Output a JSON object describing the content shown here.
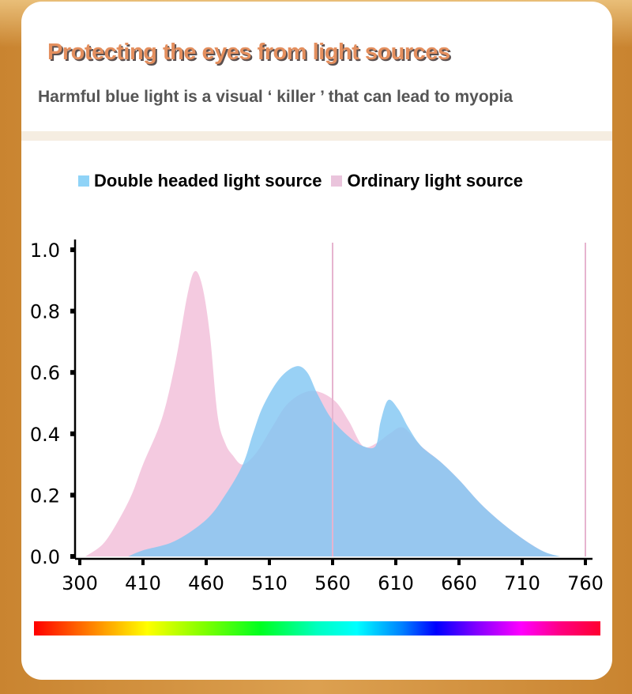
{
  "header": {
    "title": "Protecting the eyes from light sources",
    "subtitle": "Harmful blue light is a visual ‘ killer ’ that can lead to myopia"
  },
  "colors": {
    "double_headed": "#8fd3f7",
    "ordinary": "#f2c1da",
    "overlap": "#93c3ec",
    "title": "#e48f5e"
  },
  "chart_data": {
    "type": "area",
    "title": "",
    "xlabel": "",
    "ylabel": "",
    "legend_position": "top",
    "grid": false,
    "ylim": [
      0,
      1.0
    ],
    "x_ticks": [
      "300",
      "410",
      "460",
      "510",
      "560",
      "610",
      "660",
      "710",
      "760"
    ],
    "y_ticks": [
      "0.0",
      "0.2",
      "0.4",
      "0.6",
      "0.8",
      "1.0"
    ],
    "reference_lines_x": [
      560,
      760
    ],
    "series": [
      {
        "name": "Ordinary light source",
        "points": [
          [
            310,
            0
          ],
          [
            340,
            0.04
          ],
          [
            365,
            0.11
          ],
          [
            390,
            0.2
          ],
          [
            410,
            0.3
          ],
          [
            425,
            0.45
          ],
          [
            436,
            0.64
          ],
          [
            445,
            0.85
          ],
          [
            451,
            0.93
          ],
          [
            457,
            0.88
          ],
          [
            463,
            0.72
          ],
          [
            469,
            0.46
          ],
          [
            475,
            0.37
          ],
          [
            481,
            0.33
          ],
          [
            489,
            0.3
          ],
          [
            500,
            0.34
          ],
          [
            512,
            0.42
          ],
          [
            525,
            0.5
          ],
          [
            543,
            0.54
          ],
          [
            561,
            0.51
          ],
          [
            573,
            0.44
          ],
          [
            584,
            0.36
          ],
          [
            595,
            0.37
          ],
          [
            605,
            0.4
          ],
          [
            616,
            0.42
          ],
          [
            630,
            0.36
          ],
          [
            645,
            0.31
          ],
          [
            660,
            0.25
          ],
          [
            680,
            0.16
          ],
          [
            703,
            0.08
          ],
          [
            725,
            0.02
          ],
          [
            738,
            0
          ]
        ]
      },
      {
        "name": "Double headed light source",
        "points": [
          [
            384,
            0
          ],
          [
            410,
            0.02
          ],
          [
            435,
            0.05
          ],
          [
            460,
            0.12
          ],
          [
            475,
            0.2
          ],
          [
            489,
            0.3
          ],
          [
            497,
            0.4
          ],
          [
            505,
            0.49
          ],
          [
            518,
            0.58
          ],
          [
            531,
            0.62
          ],
          [
            540,
            0.6
          ],
          [
            548,
            0.53
          ],
          [
            559,
            0.45
          ],
          [
            573,
            0.39
          ],
          [
            584,
            0.36
          ],
          [
            594,
            0.36
          ],
          [
            598,
            0.44
          ],
          [
            604,
            0.51
          ],
          [
            612,
            0.48
          ],
          [
            620,
            0.42
          ],
          [
            630,
            0.36
          ],
          [
            645,
            0.31
          ],
          [
            660,
            0.25
          ],
          [
            680,
            0.16
          ],
          [
            703,
            0.08
          ],
          [
            725,
            0.02
          ],
          [
            740,
            0
          ]
        ]
      }
    ]
  },
  "legend": [
    {
      "label": "Double headed light source",
      "color": "#8fd3f7"
    },
    {
      "label": "Ordinary light source",
      "color": "#eac4dc"
    }
  ]
}
